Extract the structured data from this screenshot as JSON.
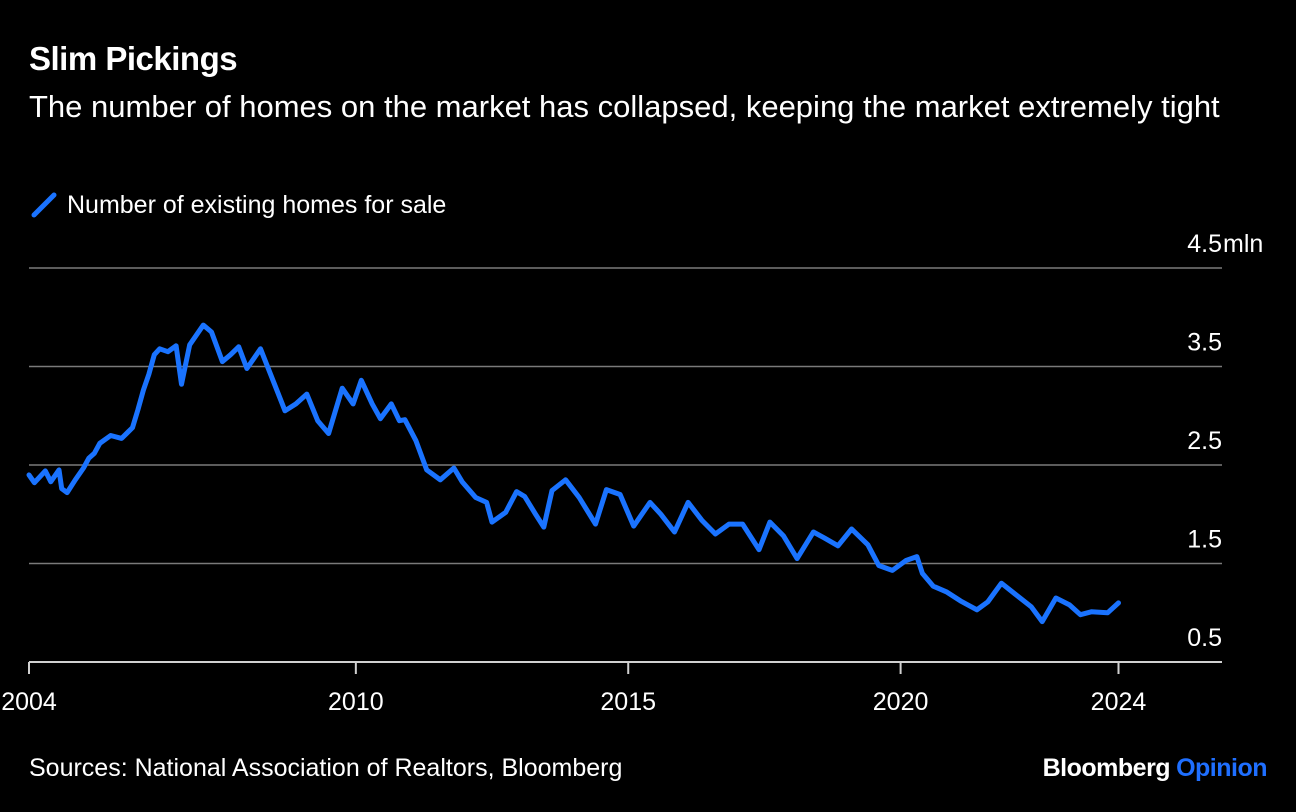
{
  "header": {
    "title": "Slim Pickings",
    "subtitle": "The number of homes on the market has collapsed, keeping the market extremely tight"
  },
  "legend": {
    "label": "Number of existing homes for sale",
    "color": "#1a73ff"
  },
  "footer": {
    "source": "Sources: National Association of Realtors, Bloomberg",
    "brand_primary": "Bloomberg",
    "brand_secondary": "Opinion"
  },
  "chart_data": {
    "type": "line",
    "title": "Slim Pickings",
    "subtitle": "The number of homes on the market has collapsed, keeping the market extremely tight",
    "unit_label": "mln",
    "xlabel": "",
    "ylabel": "",
    "xlim": [
      2004,
      2025.9
    ],
    "ylim": [
      0.5,
      4.5
    ],
    "y_ticks": [
      {
        "value": 4.5,
        "label": "4.5"
      },
      {
        "value": 3.5,
        "label": "3.5"
      },
      {
        "value": 2.5,
        "label": "2.5"
      },
      {
        "value": 1.5,
        "label": "1.5"
      },
      {
        "value": 0.5,
        "label": "0.5"
      }
    ],
    "x_ticks": [
      {
        "value": 2004,
        "label": "2004"
      },
      {
        "value": 2010,
        "label": "2010"
      },
      {
        "value": 2015,
        "label": "2015"
      },
      {
        "value": 2020,
        "label": "2020"
      },
      {
        "value": 2024,
        "label": "2024"
      }
    ],
    "grid": true,
    "legend_position": "top-left",
    "series": [
      {
        "name": "Number of existing homes for sale",
        "color": "#1a73ff",
        "x": [
          2004.0,
          2004.1,
          2004.3,
          2004.4,
          2004.55,
          2004.6,
          2004.7,
          2004.85,
          2005.0,
          2005.1,
          2005.2,
          2005.3,
          2005.5,
          2005.7,
          2005.9,
          2006.0,
          2006.1,
          2006.2,
          2006.3,
          2006.4,
          2006.55,
          2006.7,
          2006.8,
          2006.95,
          2007.2,
          2007.35,
          2007.55,
          2007.7,
          2007.85,
          2008.0,
          2008.25,
          2008.5,
          2008.7,
          2008.9,
          2009.1,
          2009.3,
          2009.5,
          2009.75,
          2009.95,
          2010.1,
          2010.3,
          2010.45,
          2010.65,
          2010.8,
          2010.9,
          2011.1,
          2011.3,
          2011.55,
          2011.8,
          2011.95,
          2012.2,
          2012.4,
          2012.5,
          2012.75,
          2012.95,
          2013.1,
          2013.3,
          2013.45,
          2013.6,
          2013.85,
          2014.1,
          2014.4,
          2014.6,
          2014.85,
          2015.1,
          2015.4,
          2015.6,
          2015.85,
          2016.1,
          2016.35,
          2016.6,
          2016.85,
          2017.1,
          2017.4,
          2017.6,
          2017.85,
          2018.1,
          2018.4,
          2018.6,
          2018.85,
          2019.1,
          2019.4,
          2019.6,
          2019.85,
          2020.1,
          2020.3,
          2020.4,
          2020.6,
          2020.85,
          2021.1,
          2021.4,
          2021.6,
          2021.85,
          2022.1,
          2022.4,
          2022.6,
          2022.85,
          2023.1,
          2023.3,
          2023.5,
          2023.8,
          2024.0
        ],
        "values": [
          2.4,
          2.32,
          2.44,
          2.33,
          2.45,
          2.26,
          2.22,
          2.35,
          2.47,
          2.57,
          2.62,
          2.72,
          2.8,
          2.77,
          2.88,
          3.06,
          3.26,
          3.42,
          3.62,
          3.68,
          3.65,
          3.71,
          3.32,
          3.72,
          3.92,
          3.85,
          3.55,
          3.62,
          3.7,
          3.48,
          3.68,
          3.33,
          3.05,
          3.12,
          3.22,
          2.95,
          2.82,
          3.28,
          3.12,
          3.36,
          3.12,
          2.97,
          3.12,
          2.95,
          2.96,
          2.75,
          2.45,
          2.35,
          2.47,
          2.33,
          2.17,
          2.12,
          1.92,
          2.02,
          2.23,
          2.18,
          2.0,
          1.87,
          2.24,
          2.35,
          2.17,
          1.9,
          2.25,
          2.2,
          1.88,
          2.12,
          2.0,
          1.82,
          2.12,
          1.94,
          1.8,
          1.9,
          1.9,
          1.64,
          1.92,
          1.78,
          1.55,
          1.82,
          1.76,
          1.68,
          1.85,
          1.69,
          1.48,
          1.43,
          1.53,
          1.57,
          1.4,
          1.27,
          1.21,
          1.12,
          1.03,
          1.11,
          1.3,
          1.19,
          1.06,
          0.91,
          1.15,
          1.08,
          0.98,
          1.01,
          1.0,
          1.1
        ]
      }
    ]
  }
}
